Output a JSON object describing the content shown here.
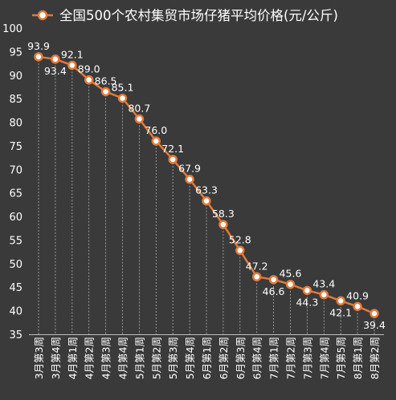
{
  "chart_data": {
    "type": "line",
    "legend": "全国500个农村集贸市场仔猪平均价格(元/公斤)",
    "legend_position": "top",
    "categories": [
      "3月第3周",
      "3月第4周",
      "4月第1周",
      "4月第2周",
      "4月第3周",
      "4月第4周",
      "5月第1周",
      "5月第2周",
      "5月第3周",
      "5月第4周",
      "6月第1周",
      "6月第2周",
      "6月第3周",
      "6月第4周",
      "7月第1周",
      "7月第2周",
      "7月第3周",
      "7月第4周",
      "7月第5周",
      "8月第1周",
      "8月第2周"
    ],
    "values": [
      93.9,
      93.4,
      92.1,
      89.0,
      86.5,
      85.1,
      80.7,
      76.0,
      72.1,
      67.9,
      63.3,
      58.3,
      52.8,
      47.2,
      46.6,
      45.6,
      44.3,
      43.4,
      42.1,
      40.9,
      39.4
    ],
    "value_labels": [
      "93.9",
      "93.4",
      "92.1",
      "89.0",
      "86.5",
      "85.1",
      "80.7",
      "76.0",
      "72.1",
      "67.9",
      "63.3",
      "58.3",
      "52.8",
      "47.2",
      "46.6",
      "45.6",
      "44.3",
      "43.4",
      "42.1",
      "40.9",
      "39.4"
    ],
    "label_side": [
      "above",
      "below",
      "above",
      "above",
      "above",
      "above",
      "above",
      "above",
      "above",
      "above",
      "above",
      "above",
      "above",
      "above",
      "below",
      "above",
      "below",
      "above",
      "below",
      "above",
      "below"
    ],
    "ylim": [
      35,
      100
    ],
    "yticks": [
      "35",
      "40",
      "45",
      "50",
      "55",
      "60",
      "65",
      "70",
      "75",
      "80",
      "85",
      "90",
      "95",
      "100"
    ],
    "grid": "vertical-dashed",
    "colors": {
      "background": "#3a3a3a",
      "line": "#e07a3a",
      "marker_fill": "#ffffff",
      "text": "#ffffff",
      "grid": "#d9d9d9",
      "axis": "#bfbfbf"
    }
  }
}
